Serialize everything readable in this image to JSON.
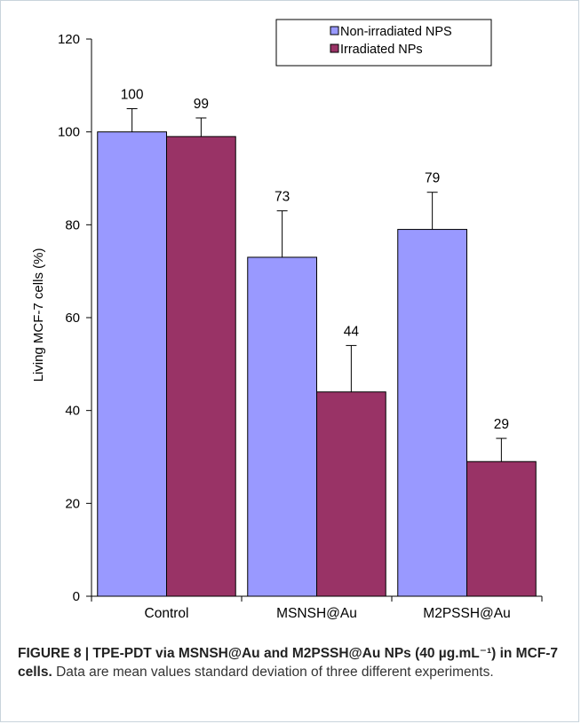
{
  "chart_data": {
    "type": "bar",
    "categories": [
      "Control",
      "MSNSH@Au",
      "M2PSSH@Au"
    ],
    "series": [
      {
        "name": "Non-irradiated NPS",
        "color": "#9999ff",
        "values": [
          100,
          73,
          79
        ],
        "errors": [
          5,
          10,
          8
        ],
        "labels": [
          "100",
          "73",
          "79"
        ]
      },
      {
        "name": "Irradiated NPs",
        "color": "#993366",
        "values": [
          99,
          44,
          29
        ],
        "errors": [
          4,
          10,
          5
        ],
        "labels": [
          "99",
          "44",
          "29"
        ]
      }
    ],
    "ylabel": "Living MCF-7 cells (%)",
    "xlabel": "",
    "ylim": [
      0,
      120
    ],
    "yticks": [
      "0",
      "20",
      "40",
      "60",
      "80",
      "100",
      "120"
    ],
    "grid": false,
    "legend_position": "top-right"
  },
  "caption": {
    "bold_text": "FIGURE 8 | TPE-PDT via MSNSH@Au and M2PSSH@Au NPs (40 µg.mL⁻¹) in MCF-7 cells.",
    "text": " Data are mean values standard deviation of three different experiments."
  }
}
